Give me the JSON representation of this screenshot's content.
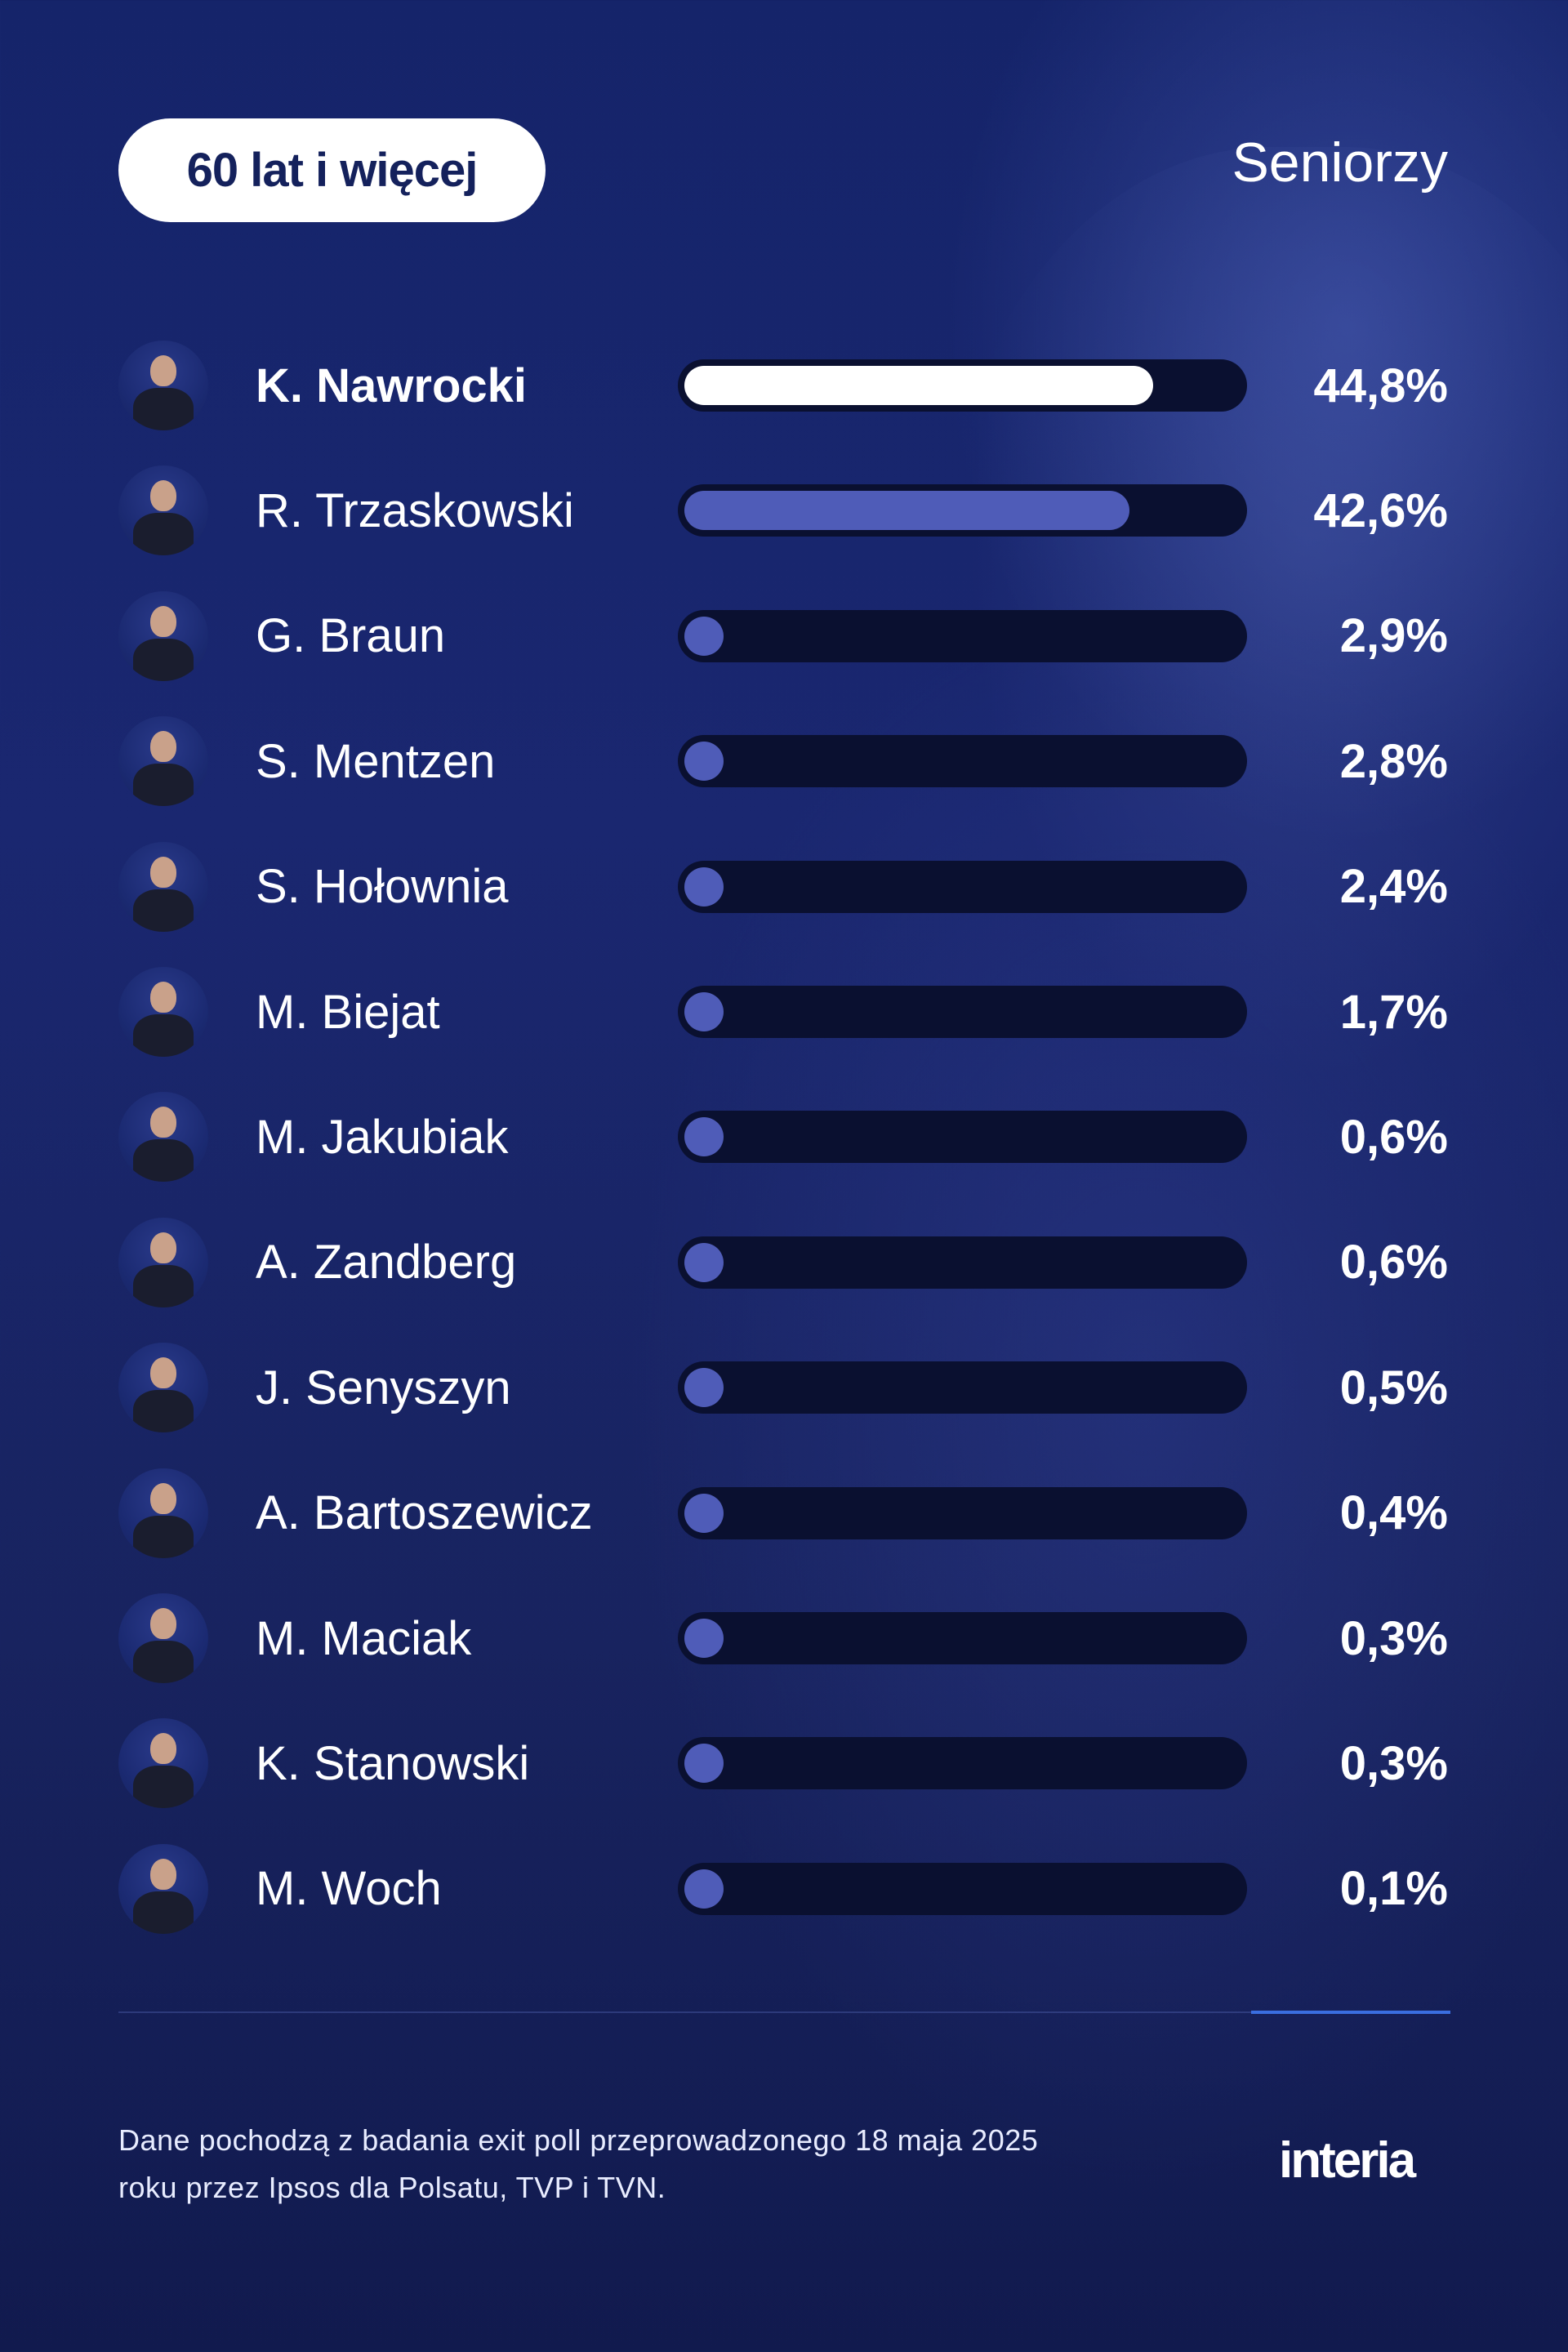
{
  "header": {
    "age_group": "60 lat i więcej",
    "segment": "Seniorzy"
  },
  "colors": {
    "background": "#18245f",
    "track": "#0a1030",
    "lead_bar": "#ffffff",
    "other_bar": "#4f5cb8",
    "accent_line": "#3a6ee0",
    "pill_text": "#14215c"
  },
  "candidates": [
    {
      "name": "K. Nawrocki",
      "value": 44.8,
      "label": "44,8%",
      "bold": true
    },
    {
      "name": "R. Trzaskowski",
      "value": 42.6,
      "label": "42,6%",
      "bold": false
    },
    {
      "name": "G. Braun",
      "value": 2.9,
      "label": "2,9%",
      "bold": false
    },
    {
      "name": "S. Mentzen",
      "value": 2.8,
      "label": "2,8%",
      "bold": false
    },
    {
      "name": "S. Hołownia",
      "value": 2.4,
      "label": "2,4%",
      "bold": false
    },
    {
      "name": "M. Biejat",
      "value": 1.7,
      "label": "1,7%",
      "bold": false
    },
    {
      "name": "M. Jakubiak",
      "value": 0.6,
      "label": "0,6%",
      "bold": false
    },
    {
      "name": "A. Zandberg",
      "value": 0.6,
      "label": "0,6%",
      "bold": false
    },
    {
      "name": "J. Senyszyn",
      "value": 0.5,
      "label": "0,5%",
      "bold": false
    },
    {
      "name": "A. Bartoszewicz",
      "value": 0.4,
      "label": "0,4%",
      "bold": false
    },
    {
      "name": "M. Maciak",
      "value": 0.3,
      "label": "0,3%",
      "bold": false
    },
    {
      "name": "K. Stanowski",
      "value": 0.3,
      "label": "0,3%",
      "bold": false
    },
    {
      "name": "M. Woch",
      "value": 0.1,
      "label": "0,1%",
      "bold": false
    }
  ],
  "footer": {
    "note": "Dane pochodzą z badania exit poll przeprowadzonego 18 maja 2025 roku przez Ipsos dla Polsatu, TVP i TVN.",
    "logo": "interia"
  },
  "chart_data": {
    "type": "bar",
    "orientation": "horizontal",
    "title": "60 lat i więcej",
    "subtitle": "Seniorzy",
    "categories": [
      "K. Nawrocki",
      "R. Trzaskowski",
      "G. Braun",
      "S. Mentzen",
      "S. Hołownia",
      "M. Biejat",
      "M. Jakubiak",
      "A. Zandberg",
      "J. Senyszyn",
      "A. Bartoszewicz",
      "M. Maciak",
      "K. Stanowski",
      "M. Woch"
    ],
    "values": [
      44.8,
      42.6,
      2.9,
      2.8,
      2.4,
      1.7,
      0.6,
      0.6,
      0.5,
      0.4,
      0.3,
      0.3,
      0.1
    ],
    "unit": "%",
    "xlabel": "",
    "ylabel": "",
    "xlim": [
      0,
      50
    ],
    "grid": false,
    "legend": null,
    "annotations": [
      "Dane pochodzą z badania exit poll przeprowadzonego 18 maja 2025 roku przez Ipsos dla Polsatu, TVP i TVN."
    ]
  }
}
